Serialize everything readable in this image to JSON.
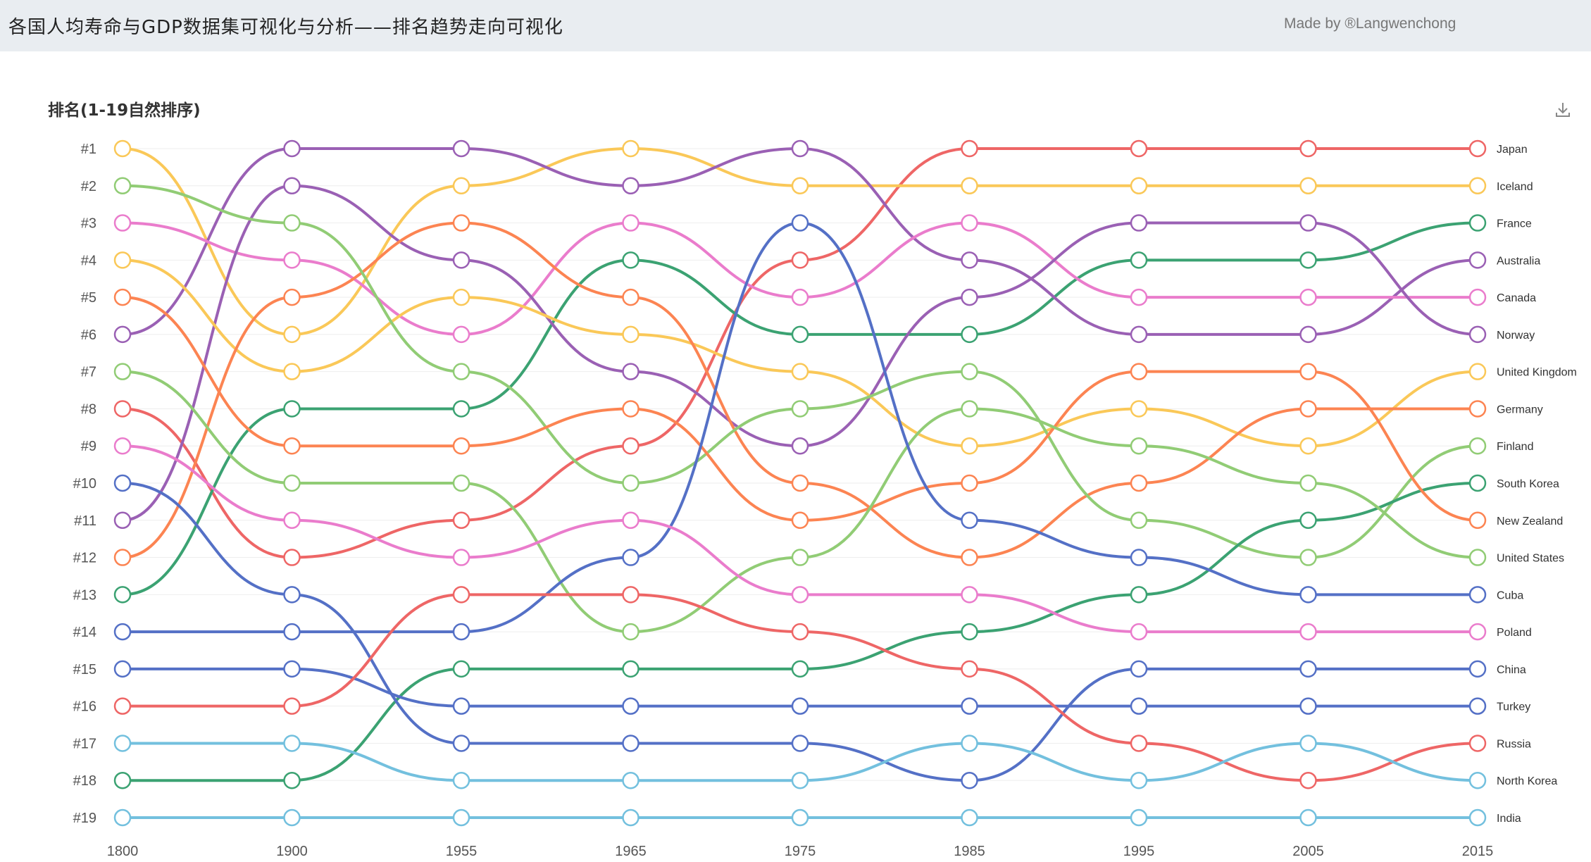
{
  "header": {
    "title": "各国人均寿命与GDP数据集可视化与分析——排名趋势走向可视化",
    "credit": "Made by ®Langwenchong"
  },
  "toolbox": {
    "download_icon": "download-icon"
  },
  "chart_data": {
    "type": "line",
    "subtype": "bump",
    "title": "排名(1-19自然排序)",
    "xlabel": "",
    "ylabel": "",
    "x": [
      "1800",
      "1900",
      "1955",
      "1965",
      "1975",
      "1985",
      "1995",
      "2005",
      "2015"
    ],
    "y_ticks": [
      "#1",
      "#2",
      "#3",
      "#4",
      "#5",
      "#6",
      "#7",
      "#8",
      "#9",
      "#10",
      "#11",
      "#12",
      "#13",
      "#14",
      "#15",
      "#16",
      "#17",
      "#18",
      "#19"
    ],
    "ylim": [
      1,
      19
    ],
    "y_inverted": true,
    "grid": true,
    "smooth": true,
    "marker": "hollow-circle",
    "series": [
      {
        "name": "Japan",
        "color": "#ee6666",
        "values": [
          8,
          12,
          11,
          9,
          4,
          1,
          1,
          1,
          1
        ]
      },
      {
        "name": "Iceland",
        "color": "#fac858",
        "values": [
          1,
          6,
          2,
          1,
          2,
          2,
          2,
          2,
          2
        ]
      },
      {
        "name": "France",
        "color": "#3ba272",
        "values": [
          13,
          8,
          8,
          4,
          6,
          6,
          4,
          4,
          3
        ]
      },
      {
        "name": "Australia",
        "color": "#9a60b4",
        "values": [
          6,
          1,
          1,
          2,
          1,
          4,
          6,
          6,
          4
        ]
      },
      {
        "name": "Canada",
        "color": "#ea7ccc",
        "values": [
          3,
          4,
          6,
          3,
          5,
          3,
          5,
          5,
          5
        ]
      },
      {
        "name": "Norway",
        "color": "#9a60b4",
        "values": [
          11,
          2,
          4,
          7,
          9,
          5,
          3,
          3,
          6
        ]
      },
      {
        "name": "United Kingdom",
        "color": "#fac858",
        "values": [
          4,
          7,
          5,
          6,
          7,
          9,
          8,
          9,
          7
        ]
      },
      {
        "name": "Germany",
        "color": "#fc8452",
        "values": [
          12,
          5,
          3,
          5,
          10,
          12,
          10,
          8,
          8
        ]
      },
      {
        "name": "Finland",
        "color": "#91cc75",
        "values": [
          2,
          3,
          7,
          10,
          8,
          7,
          11,
          12,
          9
        ]
      },
      {
        "name": "South Korea",
        "color": "#3ba272",
        "values": [
          18,
          18,
          15,
          15,
          15,
          14,
          13,
          11,
          10
        ]
      },
      {
        "name": "New Zealand",
        "color": "#fc8452",
        "values": [
          5,
          9,
          9,
          8,
          11,
          10,
          7,
          7,
          11
        ]
      },
      {
        "name": "United States",
        "color": "#91cc75",
        "values": [
          7,
          10,
          10,
          14,
          12,
          8,
          9,
          10,
          12
        ]
      },
      {
        "name": "Cuba",
        "color": "#5470c6",
        "values": [
          14,
          14,
          14,
          12,
          3,
          11,
          12,
          13,
          13
        ]
      },
      {
        "name": "Poland",
        "color": "#ea7ccc",
        "values": [
          9,
          11,
          12,
          11,
          13,
          13,
          14,
          14,
          14
        ]
      },
      {
        "name": "China",
        "color": "#5470c6",
        "values": [
          10,
          13,
          17,
          17,
          17,
          18,
          15,
          15,
          15
        ]
      },
      {
        "name": "Turkey",
        "color": "#5470c6",
        "values": [
          15,
          15,
          16,
          16,
          16,
          16,
          16,
          16,
          16
        ]
      },
      {
        "name": "Russia",
        "color": "#ee6666",
        "values": [
          16,
          16,
          13,
          13,
          14,
          15,
          17,
          18,
          17
        ]
      },
      {
        "name": "North Korea",
        "color": "#73c0de",
        "values": [
          17,
          17,
          18,
          18,
          18,
          17,
          18,
          17,
          18
        ]
      },
      {
        "name": "India",
        "color": "#73c0de",
        "values": [
          19,
          19,
          19,
          19,
          19,
          19,
          19,
          19,
          19
        ]
      }
    ]
  }
}
